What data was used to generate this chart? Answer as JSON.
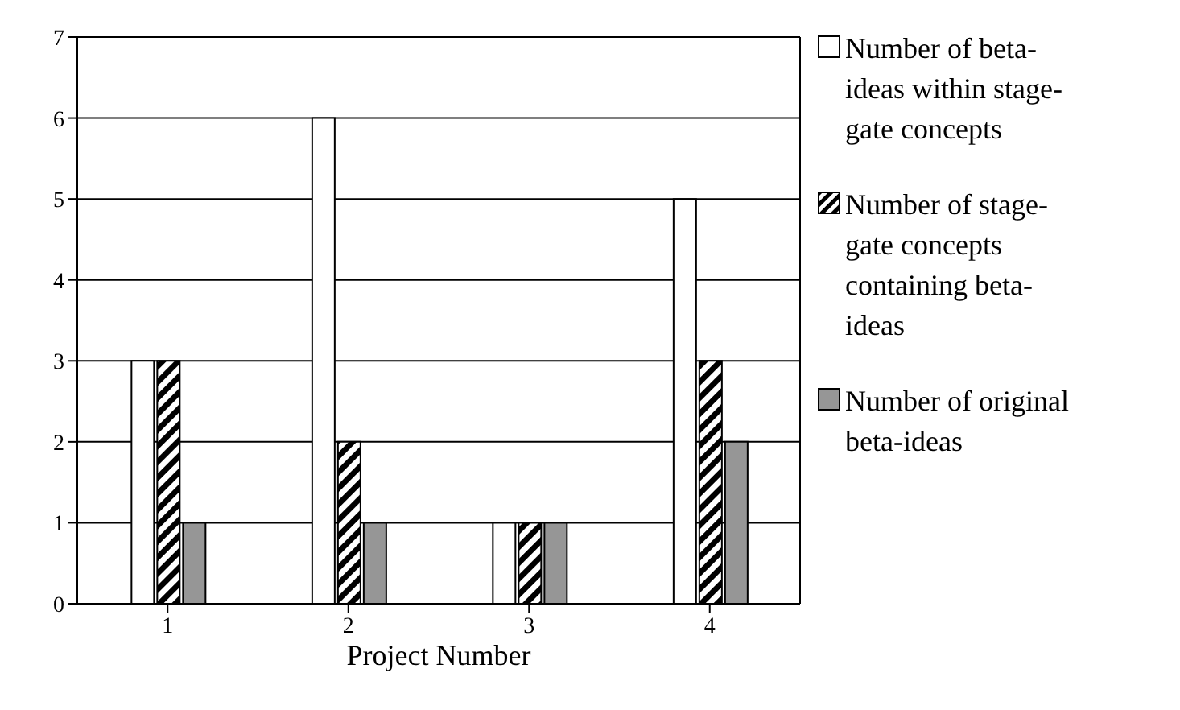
{
  "chart_data": {
    "type": "bar",
    "xlabel": "Project Number",
    "categories": [
      "1",
      "2",
      "3",
      "4"
    ],
    "series": [
      {
        "name": "Number of beta-ideas within stage-gate concepts",
        "color": "#ffffff",
        "values": [
          3,
          6,
          1,
          5
        ]
      },
      {
        "name": "Number of stage-gate concepts containing beta-ideas",
        "color": "#000000",
        "values": [
          3,
          2,
          1,
          3
        ]
      },
      {
        "name": "Number of original beta-ideas",
        "color": "#969696",
        "values": [
          1,
          1,
          1,
          2
        ]
      }
    ],
    "ylim": [
      0,
      7
    ],
    "yticks": [
      0,
      1,
      2,
      3,
      4,
      5,
      6,
      7
    ],
    "grid": "y",
    "legend": "right"
  }
}
